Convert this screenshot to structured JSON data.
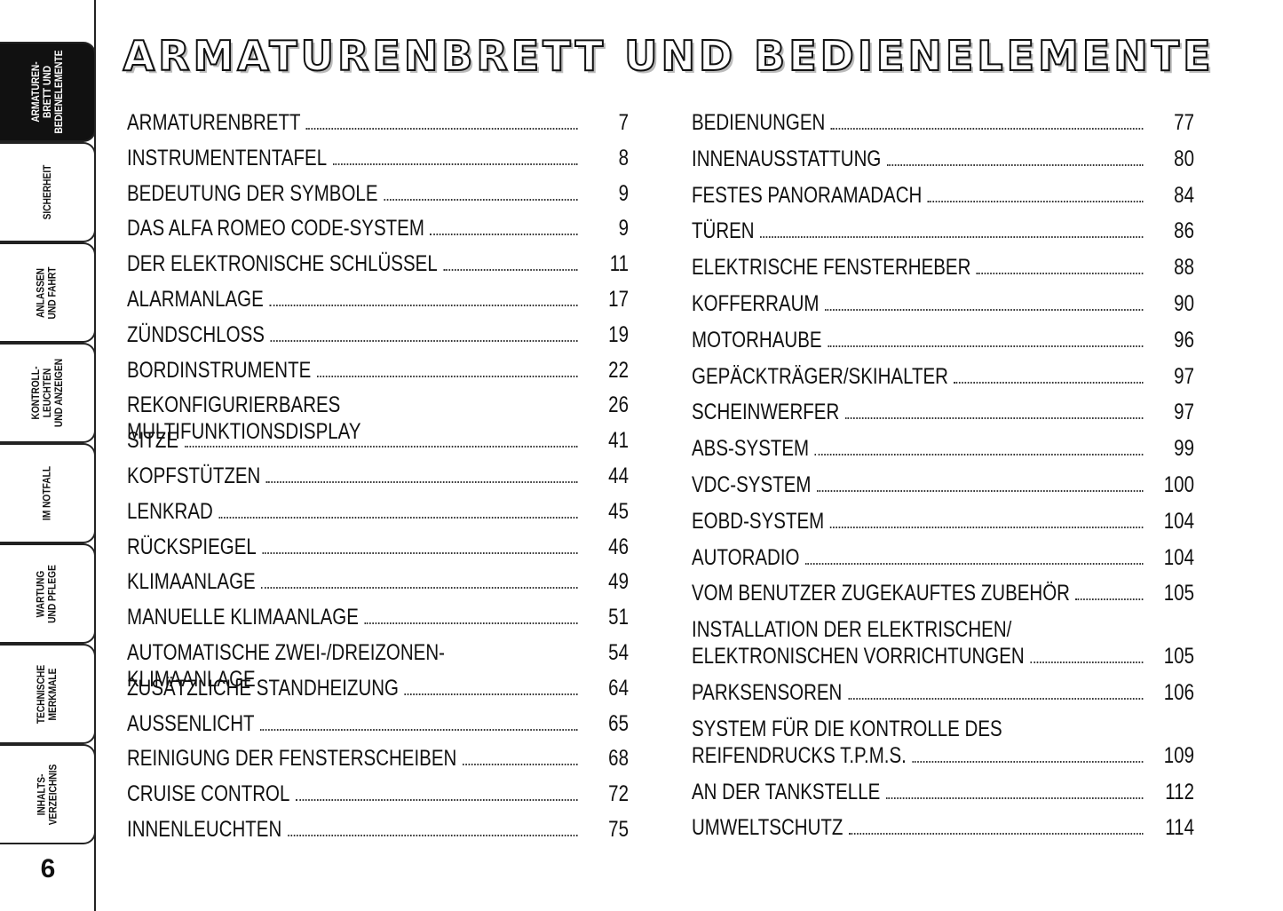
{
  "title": "ARMATURENBRETT UND BEDIENELEMENTE",
  "tabs": [
    {
      "lines": [
        "ARMATUREN-",
        "BRETT UND",
        "BEDIENELEMENTE"
      ],
      "active": true
    },
    {
      "lines": [
        "SICHERHEIT"
      ],
      "active": false
    },
    {
      "lines": [
        "ANLASSEN",
        "UND FAHRT"
      ],
      "active": false
    },
    {
      "lines": [
        "KONTROLL-",
        "LEUCHTEN",
        "UND ANZEIGEN"
      ],
      "active": false
    },
    {
      "lines": [
        "IM NOTFALL"
      ],
      "active": false
    },
    {
      "lines": [
        "WARTUNG",
        "UND PFLEGE"
      ],
      "active": false
    },
    {
      "lines": [
        "TECHNISCHE",
        "MERKMALE"
      ],
      "active": false
    },
    {
      "lines": [
        "INHALTS-",
        "VERZEICHNIS"
      ],
      "active": false
    }
  ],
  "page_number": 6,
  "toc_left": [
    {
      "lines": [
        "ARMATURENBRETT"
      ],
      "page": 7
    },
    {
      "lines": [
        "INSTRUMENTENTAFEL"
      ],
      "page": 8
    },
    {
      "lines": [
        "BEDEUTUNG DER SYMBOLE"
      ],
      "page": 9
    },
    {
      "lines": [
        "DAS ALFA ROMEO CODE-SYSTEM"
      ],
      "page": 9
    },
    {
      "lines": [
        "DER ELEKTRONISCHE SCHLÜSSEL"
      ],
      "page": 11
    },
    {
      "lines": [
        "ALARMANLAGE"
      ],
      "page": 17
    },
    {
      "lines": [
        "ZÜNDSCHLOSS"
      ],
      "page": 19
    },
    {
      "lines": [
        "BORDINSTRUMENTE"
      ],
      "page": 22
    },
    {
      "lines": [
        "REKONFIGURIERBARES MULTIFUNKTIONSDISPLAY"
      ],
      "page": 26
    },
    {
      "lines": [
        "SITZE"
      ],
      "page": 41
    },
    {
      "lines": [
        "KOPFSTÜTZEN"
      ],
      "page": 44
    },
    {
      "lines": [
        "LENKRAD"
      ],
      "page": 45
    },
    {
      "lines": [
        "RÜCKSPIEGEL"
      ],
      "page": 46
    },
    {
      "lines": [
        "KLIMAANLAGE"
      ],
      "page": 49
    },
    {
      "lines": [
        "MANUELLE KLIMAANLAGE"
      ],
      "page": 51
    },
    {
      "lines": [
        "AUTOMATISCHE ZWEI-/DREIZONEN-KLIMAANLAGE"
      ],
      "page": 54
    },
    {
      "lines": [
        "ZUSÄTZLICHE STANDHEIZUNG"
      ],
      "page": 64
    },
    {
      "lines": [
        "AUSSENLICHT"
      ],
      "page": 65
    },
    {
      "lines": [
        "REINIGUNG DER FENSTERSCHEIBEN"
      ],
      "page": 68
    },
    {
      "lines": [
        "CRUISE CONTROL"
      ],
      "page": 72
    },
    {
      "lines": [
        "INNENLEUCHTEN"
      ],
      "page": 75
    }
  ],
  "toc_right": [
    {
      "lines": [
        "BEDIENUNGEN"
      ],
      "page": 77
    },
    {
      "lines": [
        "INNENAUSSTATTUNG"
      ],
      "page": 80
    },
    {
      "lines": [
        "FESTES PANORAMADACH"
      ],
      "page": 84
    },
    {
      "lines": [
        "TÜREN"
      ],
      "page": 86
    },
    {
      "lines": [
        "ELEKTRISCHE FENSTERHEBER"
      ],
      "page": 88
    },
    {
      "lines": [
        "KOFFERRAUM"
      ],
      "page": 90
    },
    {
      "lines": [
        "MOTORHAUBE"
      ],
      "page": 96
    },
    {
      "lines": [
        "GEPÄCKTRÄGER/SKIHALTER"
      ],
      "page": 97
    },
    {
      "lines": [
        "SCHEINWERFER"
      ],
      "page": 97
    },
    {
      "lines": [
        "ABS-SYSTEM"
      ],
      "page": 99
    },
    {
      "lines": [
        "VDC-SYSTEM"
      ],
      "page": 100
    },
    {
      "lines": [
        "EOBD-SYSTEM"
      ],
      "page": 104
    },
    {
      "lines": [
        "AUTORADIO"
      ],
      "page": 104
    },
    {
      "lines": [
        "VOM BENUTZER ZUGEKAUFTES ZUBEHÖR"
      ],
      "page": 105
    },
    {
      "lines": [
        "INSTALLATION DER ELEKTRISCHEN/",
        "ELEKTRONISCHEN VORRICHTUNGEN"
      ],
      "page": 105
    },
    {
      "lines": [
        "PARKSENSOREN"
      ],
      "page": 106
    },
    {
      "lines": [
        "SYSTEM FÜR DIE KONTROLLE DES",
        "REIFENDRUCKS T.P.M.S."
      ],
      "page": 109
    },
    {
      "lines": [
        "AN DER TANKSTELLE"
      ],
      "page": 112
    },
    {
      "lines": [
        "UMWELTSCHUTZ"
      ],
      "page": 114
    }
  ]
}
